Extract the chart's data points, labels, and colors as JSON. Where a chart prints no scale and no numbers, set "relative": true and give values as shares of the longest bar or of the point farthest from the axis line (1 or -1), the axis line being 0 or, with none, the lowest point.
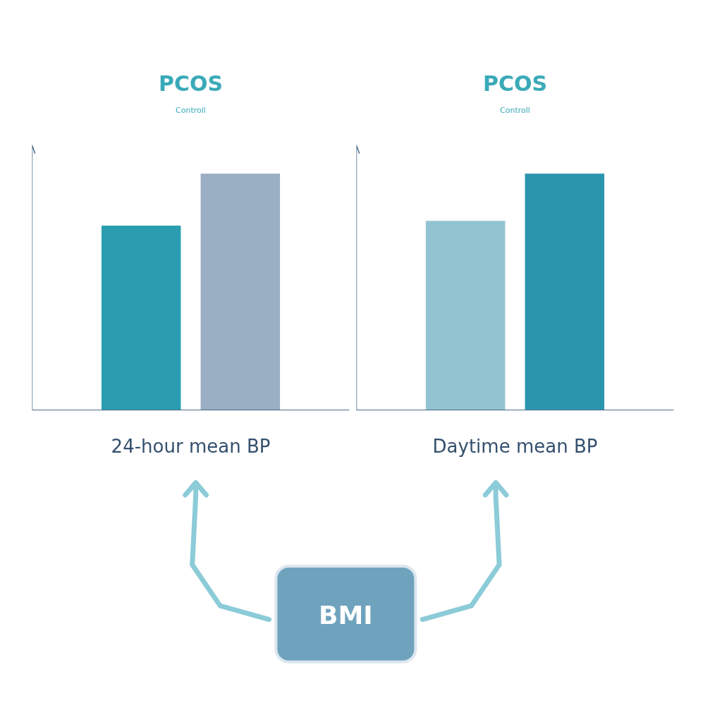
{
  "chart_data": [
    {
      "type": "bar",
      "relative": true,
      "categories": [
        null,
        null
      ],
      "values": [
        0.78,
        1
      ],
      "colors": [
        "#2a9db0",
        "#9aaec4"
      ],
      "xlabel": "24-hour mean BP",
      "annotations": [
        "PCOS",
        "Controll"
      ]
    },
    {
      "type": "bar",
      "relative": true,
      "categories": [
        null,
        null
      ],
      "values": [
        0.8,
        1
      ],
      "colors": [
        "#92c3d0",
        "#2a96ae"
      ],
      "xlabel": "Daytime mean BP",
      "annotations": [
        "PCOS",
        "Controll"
      ]
    },
    {
      "type": "other",
      "annotations": [
        "BMI"
      ]
    }
  ]
}
